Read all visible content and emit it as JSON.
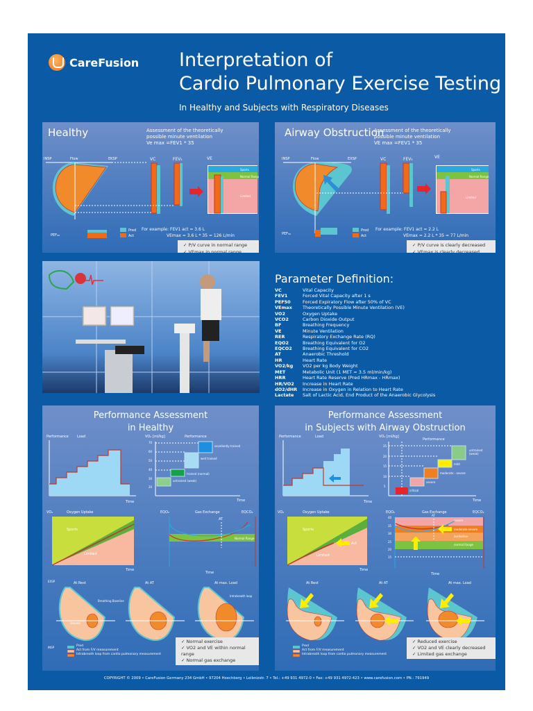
{
  "brand": {
    "name": "CareFusion"
  },
  "header": {
    "title_line1": "Interpretation of",
    "title_line2": "Cardio Pulmonary Exercise Testing",
    "subtitle": "In Healthy and Subjects with Respiratory Diseases"
  },
  "healthy": {
    "title": "Healthy",
    "note_line1": "Assessment of the theoretically",
    "note_line2": "possible minute ventilation",
    "formula": "Ve max =FEV1 * 35",
    "axis_labels": [
      "INSP",
      "Flow",
      "EKSP",
      "VC",
      "FEV1",
      "VE",
      "Volume",
      "PEF50"
    ],
    "ve_zones": [
      "Sports",
      "Normal Range",
      "Limited"
    ],
    "legend": [
      "Pred",
      "Act"
    ],
    "example_line1": "For example: FEV1 act = 3.6 L",
    "example_line2": "VEmax = 3.6 L * 35 = 126 L/min",
    "checks": [
      "P/V curve in normal range",
      "VEmax in normal range"
    ]
  },
  "obstruction": {
    "title": "Airway Obstruction",
    "note_line1": "Assessment of the theoretically",
    "note_line2": "possible minute ventilation",
    "formula": "VE max =FEV1 * 35",
    "ve_zones": [
      "Sports",
      "Normal Range",
      "Limited"
    ],
    "legend": [
      "Pred",
      "Act"
    ],
    "example_line1": "For example: FEV1 act = 2.2 L",
    "example_line2": "VEmax = 2.2 L * 35 = 77 L/min",
    "checks": [
      "P/V curve is clearly decreased",
      "VEmax is clearly decreased"
    ]
  },
  "parameters": {
    "title": "Parameter Definition:",
    "items": [
      {
        "k": "VC",
        "v": "Vital Capacity"
      },
      {
        "k": "FEV1",
        "v": "Forced Vital Capacity after 1 s"
      },
      {
        "k": "PEF50",
        "v": "Forced Expiratory Flow after 50% of VC"
      },
      {
        "k": "VEmax",
        "v": "Theoretically Possible Minute Ventilation (VE)"
      },
      {
        "k": "VO2",
        "v": "Oxygen Uptake"
      },
      {
        "k": "VCO2",
        "v": "Carbon Dioxide Output"
      },
      {
        "k": "BF",
        "v": "Breathing Frequency"
      },
      {
        "k": "VE",
        "v": "Minute Ventilation"
      },
      {
        "k": "RER",
        "v": "Respiratory Exchange Rate (RQ)"
      },
      {
        "k": "EQO2",
        "v": "Breathing Equivalent for O2"
      },
      {
        "k": "EQCO2",
        "v": "Breathing Equivalent for CO2"
      },
      {
        "k": "AT",
        "v": "Anaerobic Threshold"
      },
      {
        "k": "HR",
        "v": "Heart Rate"
      },
      {
        "k": "VO2/kg",
        "v": "VO2 per kg Body Weight"
      },
      {
        "k": "MET",
        "v": "Metabolic Unit (1 MET = 3.5 ml/min/kg)"
      },
      {
        "k": "HRR",
        "v": "Heart Rate Reserve (Pred HRmax - HRmax)"
      },
      {
        "k": "HR/VO2",
        "v": "Increase in Heart Rate"
      },
      {
        "k": "dO2/dHR",
        "v": "Increase in Oxygen in Relation to Heart Rate"
      },
      {
        "k": "Lactate",
        "v": "Salt of Lactic Acid, End Product of the Anaerobic Glycolysis"
      }
    ]
  },
  "perf_healthy": {
    "title_line1": "Performance Assessment",
    "title_line2": "in Healthy",
    "load_labels": [
      "Performance",
      "Load",
      "Time"
    ],
    "vo2_axis": "VO2 [ml/kg]",
    "vo2_header": "Performance",
    "vo2_ticks": [
      "70",
      "60",
      "50",
      "40",
      "30",
      "20"
    ],
    "levels": [
      "excellently trained",
      "well trained",
      "trained (normal)",
      "untrained (weak)"
    ],
    "oxygen_uptake": {
      "axis": "VO2",
      "title": "Oxygen Uptake",
      "zones": [
        "Sports",
        "Limited",
        "Normal Range",
        "Act"
      ],
      "x": "Time"
    },
    "gas_exchange": {
      "left": "EQO2",
      "title": "Gas Exchange",
      "right": "EQCO2",
      "at": "AT",
      "zone": "Normal Range",
      "x": "Time"
    },
    "loops": {
      "titles": [
        "At Rest",
        "At AT",
        "At max. Load"
      ],
      "y_top": "EXSP",
      "y_bottom": "INSP",
      "y_axis": "Flow",
      "x_axis": "Volume",
      "notes": [
        "Breathing Baseline",
        "Intrabreath loop"
      ]
    },
    "legend": [
      "Pred",
      "Act from F/V measurement",
      "Intrabreath loop from cardio pulmonary measurement"
    ],
    "checks": [
      "Normal exercise",
      "VO2 and VE within normal range",
      "Normal gas exchange"
    ]
  },
  "perf_obstruction": {
    "title_line1": "Performance Assessment",
    "title_line2": "in Subjects with Airway Obstruction",
    "load_labels": [
      "Performance",
      "Load",
      "Time"
    ],
    "vo2_axis": "VO2 [ml/kg]",
    "vo2_header": "Performance",
    "vo2_ticks": [
      "25",
      "20",
      "15",
      "10",
      "5"
    ],
    "levels": [
      "untrained (weak)",
      "mild",
      "moderate - severe",
      "severe",
      "critical"
    ],
    "oxygen_uptake": {
      "axis": "VO2",
      "title": "Oxygen Uptake",
      "zones": [
        "Sports",
        "Limited",
        "Normal Range",
        "Act"
      ],
      "x": "Time"
    },
    "gas_exchange": {
      "left": "EQO2",
      "title": "Gas Exchange",
      "right": "EQCO2",
      "at": "AT",
      "ticks": [
        "40",
        "35",
        "30",
        "25",
        "20",
        "15"
      ],
      "zones": [
        "severe",
        "moderate-severe",
        "borderline",
        "normal Range"
      ],
      "x": "Time"
    },
    "loops": {
      "titles": [
        "At Rest",
        "At AT",
        "At max. Load"
      ]
    },
    "legend": [
      "Pred",
      "Act from F/V measurement",
      "Intrabreath loop from cardio pulmonary measurement"
    ],
    "checks": [
      "Reduced exercise",
      "VO2 and VE clearly decreased",
      "Limited gas exchange"
    ]
  },
  "footer": {
    "text": "COPYRIGHT © 2009 • CareFusion Germany 234 GmbH • 97204 Hoechberg • Leibnizstr. 7 • Tel.: +49 931 4972-0 • Fax: +49 931 4972-423 • www.carefusion.com • PN.: 791949"
  }
}
